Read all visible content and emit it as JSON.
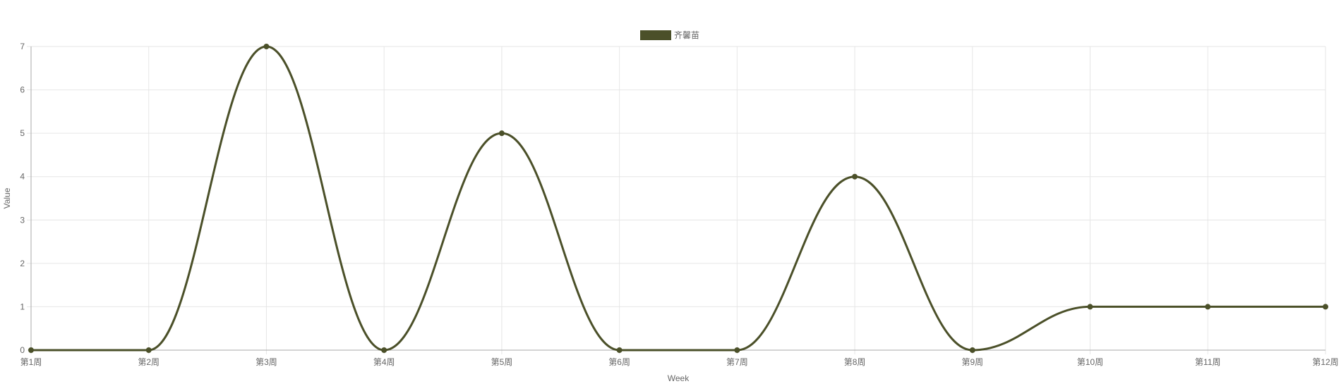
{
  "chart_data": {
    "type": "line",
    "x": [
      "第1周",
      "第2周",
      "第3周",
      "第4周",
      "第5周",
      "第6周",
      "第7周",
      "第8周",
      "第9周",
      "第10周",
      "第11周",
      "第12周"
    ],
    "series": [
      {
        "name": "齐馨苗",
        "values": [
          0,
          0,
          7,
          0,
          5,
          0,
          0,
          4,
          0,
          1,
          1,
          1
        ],
        "color": "#4b5029"
      }
    ],
    "xlabel": "Week",
    "ylabel": "Value",
    "ylim": [
      0,
      7
    ],
    "yticks": [
      "0",
      "1",
      "2",
      "3",
      "4",
      "5",
      "6",
      "7"
    ],
    "grid": true,
    "legend_position": "top-center",
    "smooth": true
  }
}
